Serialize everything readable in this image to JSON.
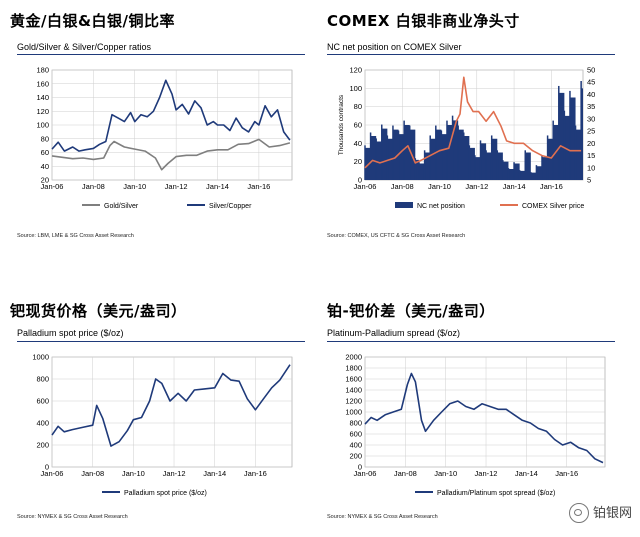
{
  "colors": {
    "navy": "#1f3a7a",
    "orange": "#e07050",
    "grey": "#7f7f7f",
    "navyFill": "#1f3a7a"
  },
  "watermark": "铂银网",
  "panels": [
    {
      "title": "黄金/白银&白银/铜比率",
      "subtitle": "Gold/Silver & Silver/Copper ratios",
      "source": "Source: LBM, LME & SG Cross Asset Research"
    },
    {
      "title": "COMEX 白银非商业净头寸",
      "subtitle": "NC net position on COMEX Silver",
      "source": "Source: COMEX, US CFTC & SG Cross Asset Research"
    },
    {
      "title": "钯现货价格（美元/盎司）",
      "subtitle": "Palladium spot price ($/oz)",
      "source": "Source: NYMEX & SG Cross Asset Research"
    },
    {
      "title": "铂-钯价差（美元/盎司）",
      "subtitle": "Platinum-Palladium spread ($/oz)",
      "source": "Source: NYMEX & SG Cross Asset Research"
    }
  ],
  "chart_data": [
    {
      "type": "line",
      "title": "Gold/Silver & Silver/Copper ratios",
      "x_ticks": [
        "Jan-06",
        "Jan-08",
        "Jan-10",
        "Jan-12",
        "Jan-14",
        "Jan-16"
      ],
      "x_range": [
        2006.0,
        2017.6
      ],
      "ylim": [
        20,
        180
      ],
      "y_ticks": [
        "20",
        "40",
        "60",
        "80",
        "100",
        "120",
        "140",
        "160",
        "180"
      ],
      "y_tick_values": [
        20,
        40,
        60,
        80,
        100,
        120,
        140,
        160,
        180
      ],
      "legend_position": "bottom",
      "series": [
        {
          "name": "Gold/Silver",
          "color": "#7f7f7f",
          "x": [
            2006.0,
            2006.5,
            2007.0,
            2007.5,
            2008.0,
            2008.5,
            2008.8,
            2009.0,
            2009.5,
            2010.0,
            2010.5,
            2011.0,
            2011.3,
            2011.6,
            2012.0,
            2012.5,
            2013.0,
            2013.5,
            2014.0,
            2014.5,
            2015.0,
            2015.5,
            2016.0,
            2016.5,
            2017.0,
            2017.5
          ],
          "values": [
            55,
            53,
            51,
            52,
            50,
            52,
            70,
            76,
            68,
            65,
            62,
            52,
            35,
            44,
            54,
            56,
            56,
            62,
            64,
            64,
            72,
            73,
            79,
            68,
            70,
            74
          ]
        },
        {
          "name": "Silver/Copper",
          "color": "#1f3a7a",
          "x": [
            2006.0,
            2006.3,
            2006.6,
            2007.0,
            2007.3,
            2007.6,
            2008.0,
            2008.3,
            2008.6,
            2008.9,
            2009.2,
            2009.5,
            2009.8,
            2010.0,
            2010.3,
            2010.6,
            2010.9,
            2011.2,
            2011.5,
            2011.8,
            2012.0,
            2012.3,
            2012.6,
            2012.9,
            2013.2,
            2013.5,
            2013.8,
            2014.0,
            2014.3,
            2014.6,
            2014.9,
            2015.2,
            2015.5,
            2015.8,
            2016.0,
            2016.3,
            2016.6,
            2016.9,
            2017.2,
            2017.5
          ],
          "values": [
            65,
            75,
            62,
            68,
            62,
            64,
            66,
            72,
            76,
            115,
            110,
            105,
            118,
            105,
            115,
            112,
            120,
            140,
            165,
            145,
            122,
            130,
            116,
            135,
            125,
            100,
            105,
            100,
            100,
            92,
            110,
            96,
            90,
            105,
            100,
            128,
            112,
            122,
            90,
            78
          ]
        }
      ]
    },
    {
      "type": "bar+line",
      "title": "NC net position on COMEX Silver",
      "x_ticks": [
        "Jan-06",
        "Jan-08",
        "Jan-10",
        "Jan-12",
        "Jan-14",
        "Jan-16"
      ],
      "x_range": [
        2006.0,
        2017.7
      ],
      "ylim": [
        0,
        120
      ],
      "y_ticks": [
        "0",
        "20",
        "40",
        "60",
        "80",
        "100",
        "120"
      ],
      "y_tick_values": [
        0,
        20,
        40,
        60,
        80,
        100,
        120
      ],
      "ylabel": "Thousands contracts",
      "y2lim": [
        5,
        50
      ],
      "y2_ticks": [
        "5",
        "10",
        "15",
        "20",
        "25",
        "30",
        "35",
        "40",
        "45",
        "50"
      ],
      "y2_tick_values": [
        5,
        10,
        15,
        20,
        25,
        30,
        35,
        40,
        45,
        50
      ],
      "legend_position": "bottom",
      "series": [
        {
          "name": "NC net position",
          "kind": "area",
          "color": "#1f3a7a",
          "x": [
            2006.0,
            2006.3,
            2006.6,
            2006.9,
            2007.2,
            2007.5,
            2007.8,
            2008.1,
            2008.4,
            2008.7,
            2008.9,
            2009.2,
            2009.5,
            2009.8,
            2010.1,
            2010.4,
            2010.7,
            2011.0,
            2011.3,
            2011.6,
            2011.9,
            2012.2,
            2012.5,
            2012.8,
            2013.1,
            2013.4,
            2013.7,
            2014.0,
            2014.3,
            2014.6,
            2014.9,
            2015.2,
            2015.5,
            2015.8,
            2016.1,
            2016.4,
            2016.7,
            2017.0,
            2017.3,
            2017.6
          ],
          "values": [
            35,
            48,
            42,
            56,
            45,
            55,
            50,
            60,
            55,
            22,
            18,
            30,
            45,
            55,
            50,
            60,
            65,
            55,
            48,
            35,
            25,
            40,
            30,
            45,
            30,
            20,
            12,
            18,
            10,
            30,
            8,
            15,
            25,
            45,
            60,
            95,
            70,
            90,
            55,
            100
          ]
        },
        {
          "name": "COMEX Silver price",
          "kind": "line",
          "axis": "right",
          "color": "#e07050",
          "x": [
            2006.0,
            2006.4,
            2006.8,
            2007.2,
            2007.6,
            2008.0,
            2008.3,
            2008.7,
            2009.0,
            2009.5,
            2010.0,
            2010.5,
            2010.9,
            2011.1,
            2011.3,
            2011.5,
            2011.8,
            2012.1,
            2012.5,
            2012.9,
            2013.3,
            2013.6,
            2014.0,
            2014.5,
            2015.0,
            2015.5,
            2016.0,
            2016.5,
            2017.0,
            2017.6
          ],
          "values": [
            10,
            13,
            12,
            13,
            14,
            17,
            19,
            12,
            13,
            15,
            17,
            18,
            29,
            32,
            47,
            37,
            33,
            33,
            29,
            33,
            27,
            21,
            20,
            20,
            17,
            15,
            14,
            19,
            17,
            17
          ]
        }
      ]
    },
    {
      "type": "line",
      "title": "Palladium spot price ($/oz)",
      "x_ticks": [
        "Jan-06",
        "Jan-08",
        "Jan-10",
        "Jan-12",
        "Jan-14",
        "Jan-16"
      ],
      "x_range": [
        2006.0,
        2017.8
      ],
      "ylim": [
        0,
        1000
      ],
      "y_ticks": [
        "0",
        "200",
        "400",
        "600",
        "800",
        "1000"
      ],
      "y_tick_values": [
        0,
        200,
        400,
        600,
        800,
        1000
      ],
      "legend_position": "bottom",
      "series": [
        {
          "name": "Palladium spot price ($/oz)",
          "color": "#1f3a7a",
          "x": [
            2006.0,
            2006.3,
            2006.6,
            2007.0,
            2007.5,
            2008.0,
            2008.2,
            2008.5,
            2008.9,
            2009.3,
            2009.7,
            2010.0,
            2010.4,
            2010.8,
            2011.1,
            2011.4,
            2011.8,
            2012.2,
            2012.6,
            2013.0,
            2013.5,
            2014.0,
            2014.4,
            2014.8,
            2015.2,
            2015.6,
            2016.0,
            2016.4,
            2016.8,
            2017.2,
            2017.7
          ],
          "values": [
            290,
            370,
            320,
            340,
            360,
            380,
            560,
            440,
            190,
            230,
            330,
            430,
            450,
            600,
            800,
            760,
            600,
            670,
            600,
            700,
            710,
            720,
            850,
            790,
            780,
            620,
            520,
            620,
            720,
            790,
            930
          ]
        }
      ]
    },
    {
      "type": "line",
      "title": "Platinum-Palladium spread ($/oz)",
      "x_ticks": [
        "Jan-06",
        "Jan-08",
        "Jan-10",
        "Jan-12",
        "Jan-14",
        "Jan-16"
      ],
      "x_range": [
        2006.0,
        2017.9
      ],
      "ylim": [
        0,
        2000
      ],
      "y_ticks": [
        "0",
        "200",
        "400",
        "600",
        "800",
        "1000",
        "1200",
        "1400",
        "1600",
        "1800",
        "2000"
      ],
      "y_tick_values": [
        0,
        200,
        400,
        600,
        800,
        1000,
        1200,
        1400,
        1600,
        1800,
        2000
      ],
      "legend_position": "bottom",
      "series": [
        {
          "name": "Palladium/Platinum spot spread ($/oz)",
          "color": "#1f3a7a",
          "x": [
            2006.0,
            2006.3,
            2006.6,
            2007.0,
            2007.4,
            2007.8,
            2008.1,
            2008.3,
            2008.5,
            2008.8,
            2009.0,
            2009.4,
            2009.8,
            2010.2,
            2010.6,
            2011.0,
            2011.4,
            2011.8,
            2012.2,
            2012.6,
            2013.0,
            2013.4,
            2013.8,
            2014.2,
            2014.6,
            2015.0,
            2015.4,
            2015.8,
            2016.2,
            2016.6,
            2017.0,
            2017.4,
            2017.8
          ],
          "values": [
            780,
            900,
            850,
            950,
            1000,
            1050,
            1500,
            1700,
            1550,
            850,
            650,
            850,
            1000,
            1150,
            1200,
            1100,
            1050,
            1150,
            1100,
            1050,
            1050,
            950,
            850,
            800,
            700,
            650,
            500,
            400,
            450,
            350,
            300,
            150,
            80
          ]
        }
      ]
    }
  ]
}
